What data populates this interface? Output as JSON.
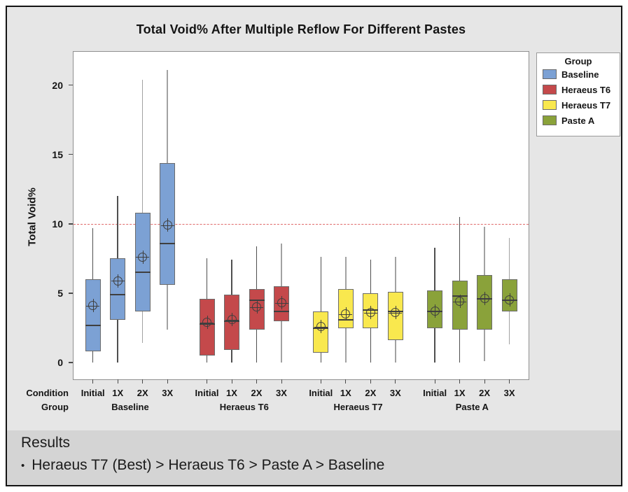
{
  "chart_data": {
    "type": "box",
    "title": "Total Void% After Multiple Reflow For Different Pastes",
    "ylabel": "Total Void%",
    "yticks": [
      0,
      5,
      10,
      15,
      20
    ],
    "ylim": [
      -1.2,
      22.4
    ],
    "grid": false,
    "reference_line": {
      "y": 10,
      "color": "#e06a6a",
      "style": "dashed"
    },
    "condition_axis_label": "Condition",
    "group_axis_label": "Group",
    "conditions": [
      "Initial",
      "1X",
      "2X",
      "3X"
    ],
    "groups": [
      {
        "name": "Baseline",
        "color": "#7ca1d4",
        "boxes": [
          {
            "condition": "Initial",
            "whisker_low": 0.0,
            "q1": 0.8,
            "median": 2.7,
            "q3": 6.0,
            "whisker_high": 9.7,
            "mean": 4.1,
            "whisker_shade": "dark"
          },
          {
            "condition": "1X",
            "whisker_low": 0.0,
            "q1": 3.1,
            "median": 4.9,
            "q3": 7.5,
            "whisker_high": 12.0,
            "mean": 5.9,
            "whisker_shade": "dark"
          },
          {
            "condition": "2X",
            "whisker_low": 1.4,
            "q1": 3.7,
            "median": 6.5,
            "q3": 10.8,
            "whisker_high": 20.4,
            "mean": 7.6,
            "whisker_shade": "light"
          },
          {
            "condition": "3X",
            "whisker_low": 2.4,
            "q1": 5.6,
            "median": 8.6,
            "q3": 14.4,
            "whisker_high": 21.1,
            "mean": 9.9,
            "whisker_shade": "light"
          }
        ]
      },
      {
        "name": "Heraeus T6",
        "color": "#c4494b",
        "boxes": [
          {
            "condition": "Initial",
            "whisker_low": 0.0,
            "q1": 0.5,
            "median": 2.8,
            "q3": 4.6,
            "whisker_high": 7.5,
            "mean": 2.9,
            "whisker_shade": "dark"
          },
          {
            "condition": "1X",
            "whisker_low": 0.0,
            "q1": 0.9,
            "median": 3.0,
            "q3": 4.9,
            "whisker_high": 7.4,
            "mean": 3.1,
            "whisker_shade": "dark"
          },
          {
            "condition": "2X",
            "whisker_low": 0.0,
            "q1": 2.4,
            "median": 4.5,
            "q3": 5.3,
            "whisker_high": 8.4,
            "mean": 4.0,
            "whisker_shade": "dark"
          },
          {
            "condition": "3X",
            "whisker_low": 0.0,
            "q1": 3.0,
            "median": 3.7,
            "q3": 5.5,
            "whisker_high": 8.6,
            "mean": 4.3,
            "whisker_shade": "light"
          }
        ]
      },
      {
        "name": "Heraeus T7",
        "color": "#f9e84e",
        "boxes": [
          {
            "condition": "Initial",
            "whisker_low": 0.0,
            "q1": 0.7,
            "median": 2.5,
            "q3": 3.7,
            "whisker_high": 7.6,
            "mean": 2.6,
            "whisker_shade": "dark"
          },
          {
            "condition": "1X",
            "whisker_low": 0.0,
            "q1": 2.5,
            "median": 3.1,
            "q3": 5.3,
            "whisker_high": 7.6,
            "mean": 3.5,
            "whisker_shade": "light"
          },
          {
            "condition": "2X",
            "whisker_low": 0.0,
            "q1": 2.5,
            "median": 3.8,
            "q3": 5.0,
            "whisker_high": 7.4,
            "mean": 3.6,
            "whisker_shade": "dark"
          },
          {
            "condition": "3X",
            "whisker_low": 0.0,
            "q1": 1.6,
            "median": 3.7,
            "q3": 5.1,
            "whisker_high": 7.6,
            "mean": 3.6,
            "whisker_shade": "light"
          }
        ]
      },
      {
        "name": "Paste A",
        "color": "#8aa23a",
        "boxes": [
          {
            "condition": "Initial",
            "whisker_low": 0.0,
            "q1": 2.5,
            "median": 3.7,
            "q3": 5.2,
            "whisker_high": 8.3,
            "mean": 3.7,
            "whisker_shade": "dark"
          },
          {
            "condition": "1X",
            "whisker_low": 0.0,
            "q1": 2.4,
            "median": 4.8,
            "q3": 5.9,
            "whisker_high": 10.5,
            "mean": 4.4,
            "whisker_shade": "dark"
          },
          {
            "condition": "2X",
            "whisker_low": 0.1,
            "q1": 2.4,
            "median": 4.6,
            "q3": 6.3,
            "whisker_high": 9.8,
            "mean": 4.6,
            "whisker_shade": "light"
          },
          {
            "condition": "3X",
            "whisker_low": 1.3,
            "q1": 3.7,
            "median": 4.5,
            "q3": 6.0,
            "whisker_high": 9.0,
            "mean": 4.5,
            "whisker_shade": "light"
          }
        ]
      }
    ],
    "legend": {
      "title": "Group",
      "position": "right",
      "entries": [
        {
          "label": "Baseline",
          "color": "#7ca1d4"
        },
        {
          "label": "Heraeus T6",
          "color": "#c4494b"
        },
        {
          "label": "Heraeus T7",
          "color": "#f9e84e"
        },
        {
          "label": "Paste A",
          "color": "#8aa23a"
        }
      ]
    }
  },
  "results": {
    "heading": "Results",
    "bullet": "•",
    "items": [
      "Heraeus T7 (Best) > Heraeus T6 > Paste A > Baseline"
    ]
  }
}
